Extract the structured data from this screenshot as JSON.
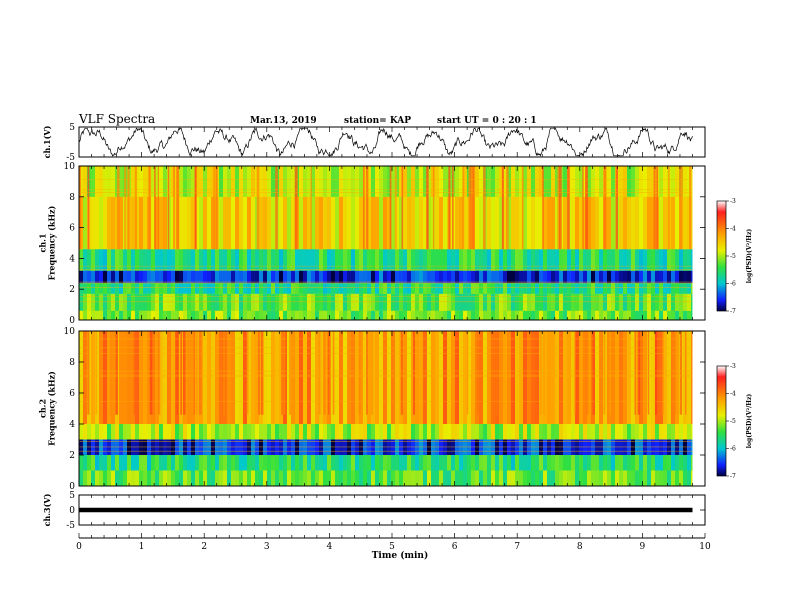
{
  "header": {
    "title": "VLF Spectra",
    "date": "Mar.13, 2019",
    "station": "station= KAP",
    "start": "start  UT =   0 : 20 : 1"
  },
  "colors": {
    "spectrogram_background": "#ffc400",
    "trace": "#000000"
  },
  "chart_data": [
    {
      "type": "line",
      "name": "ch1-waveform",
      "ylabel": "ch.1(V)",
      "x_range_min": [
        0,
        9.8
      ],
      "ylim": [
        -5,
        5
      ],
      "yticks": [
        "5",
        "-5"
      ],
      "description_values": "noisy waveform oscillating roughly between -4 and +4 V"
    },
    {
      "type": "heatmap",
      "name": "ch1-spectrogram",
      "ylabel": "ch.1\nFrequency (kHz)",
      "ylabel_lines": [
        "ch.1",
        "Frequency (kHz)"
      ],
      "ylim": [
        0,
        10
      ],
      "yticks": [
        "0",
        "2",
        "4",
        "6",
        "8",
        "10"
      ],
      "colorbar": {
        "label": "log(PSD)(V²/Hz)",
        "range": [
          -7,
          -3
        ],
        "ticks": [
          "-3",
          "-4",
          "-5",
          "-6",
          "-7"
        ]
      },
      "bands": [
        {
          "f": [
            0,
            0.6
          ],
          "level": -5.2
        },
        {
          "f": [
            0.6,
            1.7
          ],
          "level": -5.3
        },
        {
          "f": [
            1.7,
            2.4
          ],
          "level": -5.6
        },
        {
          "f": [
            2.4,
            3.2
          ],
          "level": -6.6
        },
        {
          "f": [
            3.2,
            4.6
          ],
          "level": -5.6
        },
        {
          "f": [
            4.6,
            8.0
          ],
          "level": -4.6
        },
        {
          "f": [
            8.0,
            10
          ],
          "level": -4.9
        }
      ]
    },
    {
      "type": "heatmap",
      "name": "ch2-spectrogram",
      "ylabel": "ch.2\nFrequency (kHz)",
      "ylabel_lines": [
        "ch.2",
        "Frequency (kHz)"
      ],
      "ylim": [
        0,
        10
      ],
      "yticks": [
        "0",
        "2",
        "4",
        "6",
        "8",
        "10"
      ],
      "colorbar": {
        "label": "log(PSD)(V²/Hz)",
        "range": [
          -7,
          -3
        ],
        "ticks": [
          "-3",
          "-4",
          "-5",
          "-6",
          "-7"
        ]
      },
      "bands": [
        {
          "f": [
            0,
            1.0
          ],
          "level": -5.3
        },
        {
          "f": [
            1.0,
            2.0
          ],
          "level": -5.6
        },
        {
          "f": [
            2.0,
            3.0
          ],
          "level": -6.6
        },
        {
          "f": [
            3.0,
            4.0
          ],
          "level": -5.0
        },
        {
          "f": [
            4.0,
            10
          ],
          "level": -4.2
        }
      ]
    },
    {
      "type": "line",
      "name": "ch3-waveform",
      "ylabel": "ch.3(V)",
      "ylim": [
        -5,
        5
      ],
      "yticks": [
        "5",
        "0",
        "-5"
      ],
      "constant_value": 0
    }
  ],
  "x_axis": {
    "label": "Time (min)",
    "range": [
      0,
      10
    ],
    "ticks": [
      "0",
      "1",
      "2",
      "3",
      "4",
      "5",
      "6",
      "7",
      "8",
      "9",
      "10"
    ]
  }
}
